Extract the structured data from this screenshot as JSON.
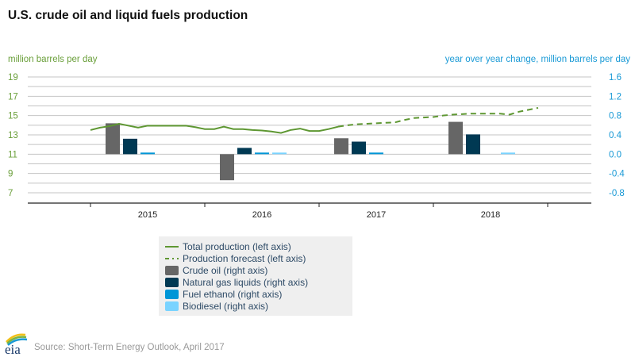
{
  "chart_data": {
    "type": "bar+line",
    "title": "U.S. crude oil and liquid fuels production",
    "left_axis": {
      "label": "million barrels per day",
      "ticks": [
        "19",
        "17",
        "15",
        "13",
        "11",
        "9",
        "7"
      ],
      "range": [
        6,
        19.5
      ]
    },
    "right_axis": {
      "label": "year over year change, million barrels per day",
      "ticks": [
        "1.6",
        "1.2",
        "0.8",
        "0.4",
        "0.0",
        "-0.4",
        "-0.8"
      ],
      "range": [
        -1.0,
        1.7
      ]
    },
    "categories": [
      "2015",
      "2016",
      "2017",
      "2018"
    ],
    "grid": true,
    "bar_series": [
      {
        "name": "Crude oil (right axis)",
        "color": "#666666",
        "values": [
          0.64,
          -0.54,
          0.33,
          0.67
        ]
      },
      {
        "name": "Natural gas liquids (right axis)",
        "color": "#003953",
        "values": [
          0.32,
          0.13,
          0.26,
          0.41
        ]
      },
      {
        "name": "Fuel ethanol (right axis)",
        "color": "#0096d7",
        "values": [
          0.02,
          0.02,
          0.02,
          0.0
        ]
      },
      {
        "name": "Biodiesel (right axis)",
        "color": "#79d3ff",
        "values": [
          0.0,
          0.02,
          0.0,
          0.01
        ]
      }
    ],
    "line_series": [
      {
        "name": "Total production (left axis)",
        "color": "#5e9732",
        "style": "solid",
        "x": [
          "2015-01",
          "2015-02",
          "2015-03",
          "2015-04",
          "2015-05",
          "2015-06",
          "2015-07",
          "2015-08",
          "2015-09",
          "2015-10",
          "2015-11",
          "2015-12",
          "2016-01",
          "2016-02",
          "2016-03",
          "2016-04",
          "2016-05",
          "2016-06",
          "2016-07",
          "2016-08",
          "2016-09",
          "2016-10",
          "2016-11",
          "2016-12",
          "2017-01",
          "2017-02",
          "2017-03"
        ],
        "y": [
          13.5,
          13.75,
          13.9,
          14.15,
          13.95,
          13.75,
          13.95,
          13.95,
          13.95,
          13.95,
          13.95,
          13.8,
          13.6,
          13.6,
          13.85,
          13.6,
          13.6,
          13.5,
          13.45,
          13.35,
          13.2,
          13.5,
          13.65,
          13.4,
          13.4,
          13.6,
          13.85
        ]
      },
      {
        "name": "Production forecast (left axis)",
        "color": "#5e9732",
        "style": "dashed",
        "x": [
          "2017-03",
          "2017-04",
          "2017-05",
          "2017-06",
          "2017-07",
          "2017-08",
          "2017-09",
          "2017-10",
          "2017-11",
          "2017-12",
          "2018-01",
          "2018-02",
          "2018-03",
          "2018-04",
          "2018-05",
          "2018-06",
          "2018-07",
          "2018-08",
          "2018-09",
          "2018-10",
          "2018-11",
          "2018-12"
        ],
        "y": [
          13.85,
          14.0,
          14.1,
          14.15,
          14.2,
          14.25,
          14.3,
          14.55,
          14.75,
          14.8,
          14.85,
          15.0,
          15.1,
          15.15,
          15.2,
          15.2,
          15.2,
          15.2,
          15.1,
          15.4,
          15.6,
          15.8
        ]
      }
    ],
    "legend_position": "bottom-center"
  },
  "footer": {
    "logo": "eia",
    "source": "Source: Short-Term Energy Outlook, April 2017"
  }
}
